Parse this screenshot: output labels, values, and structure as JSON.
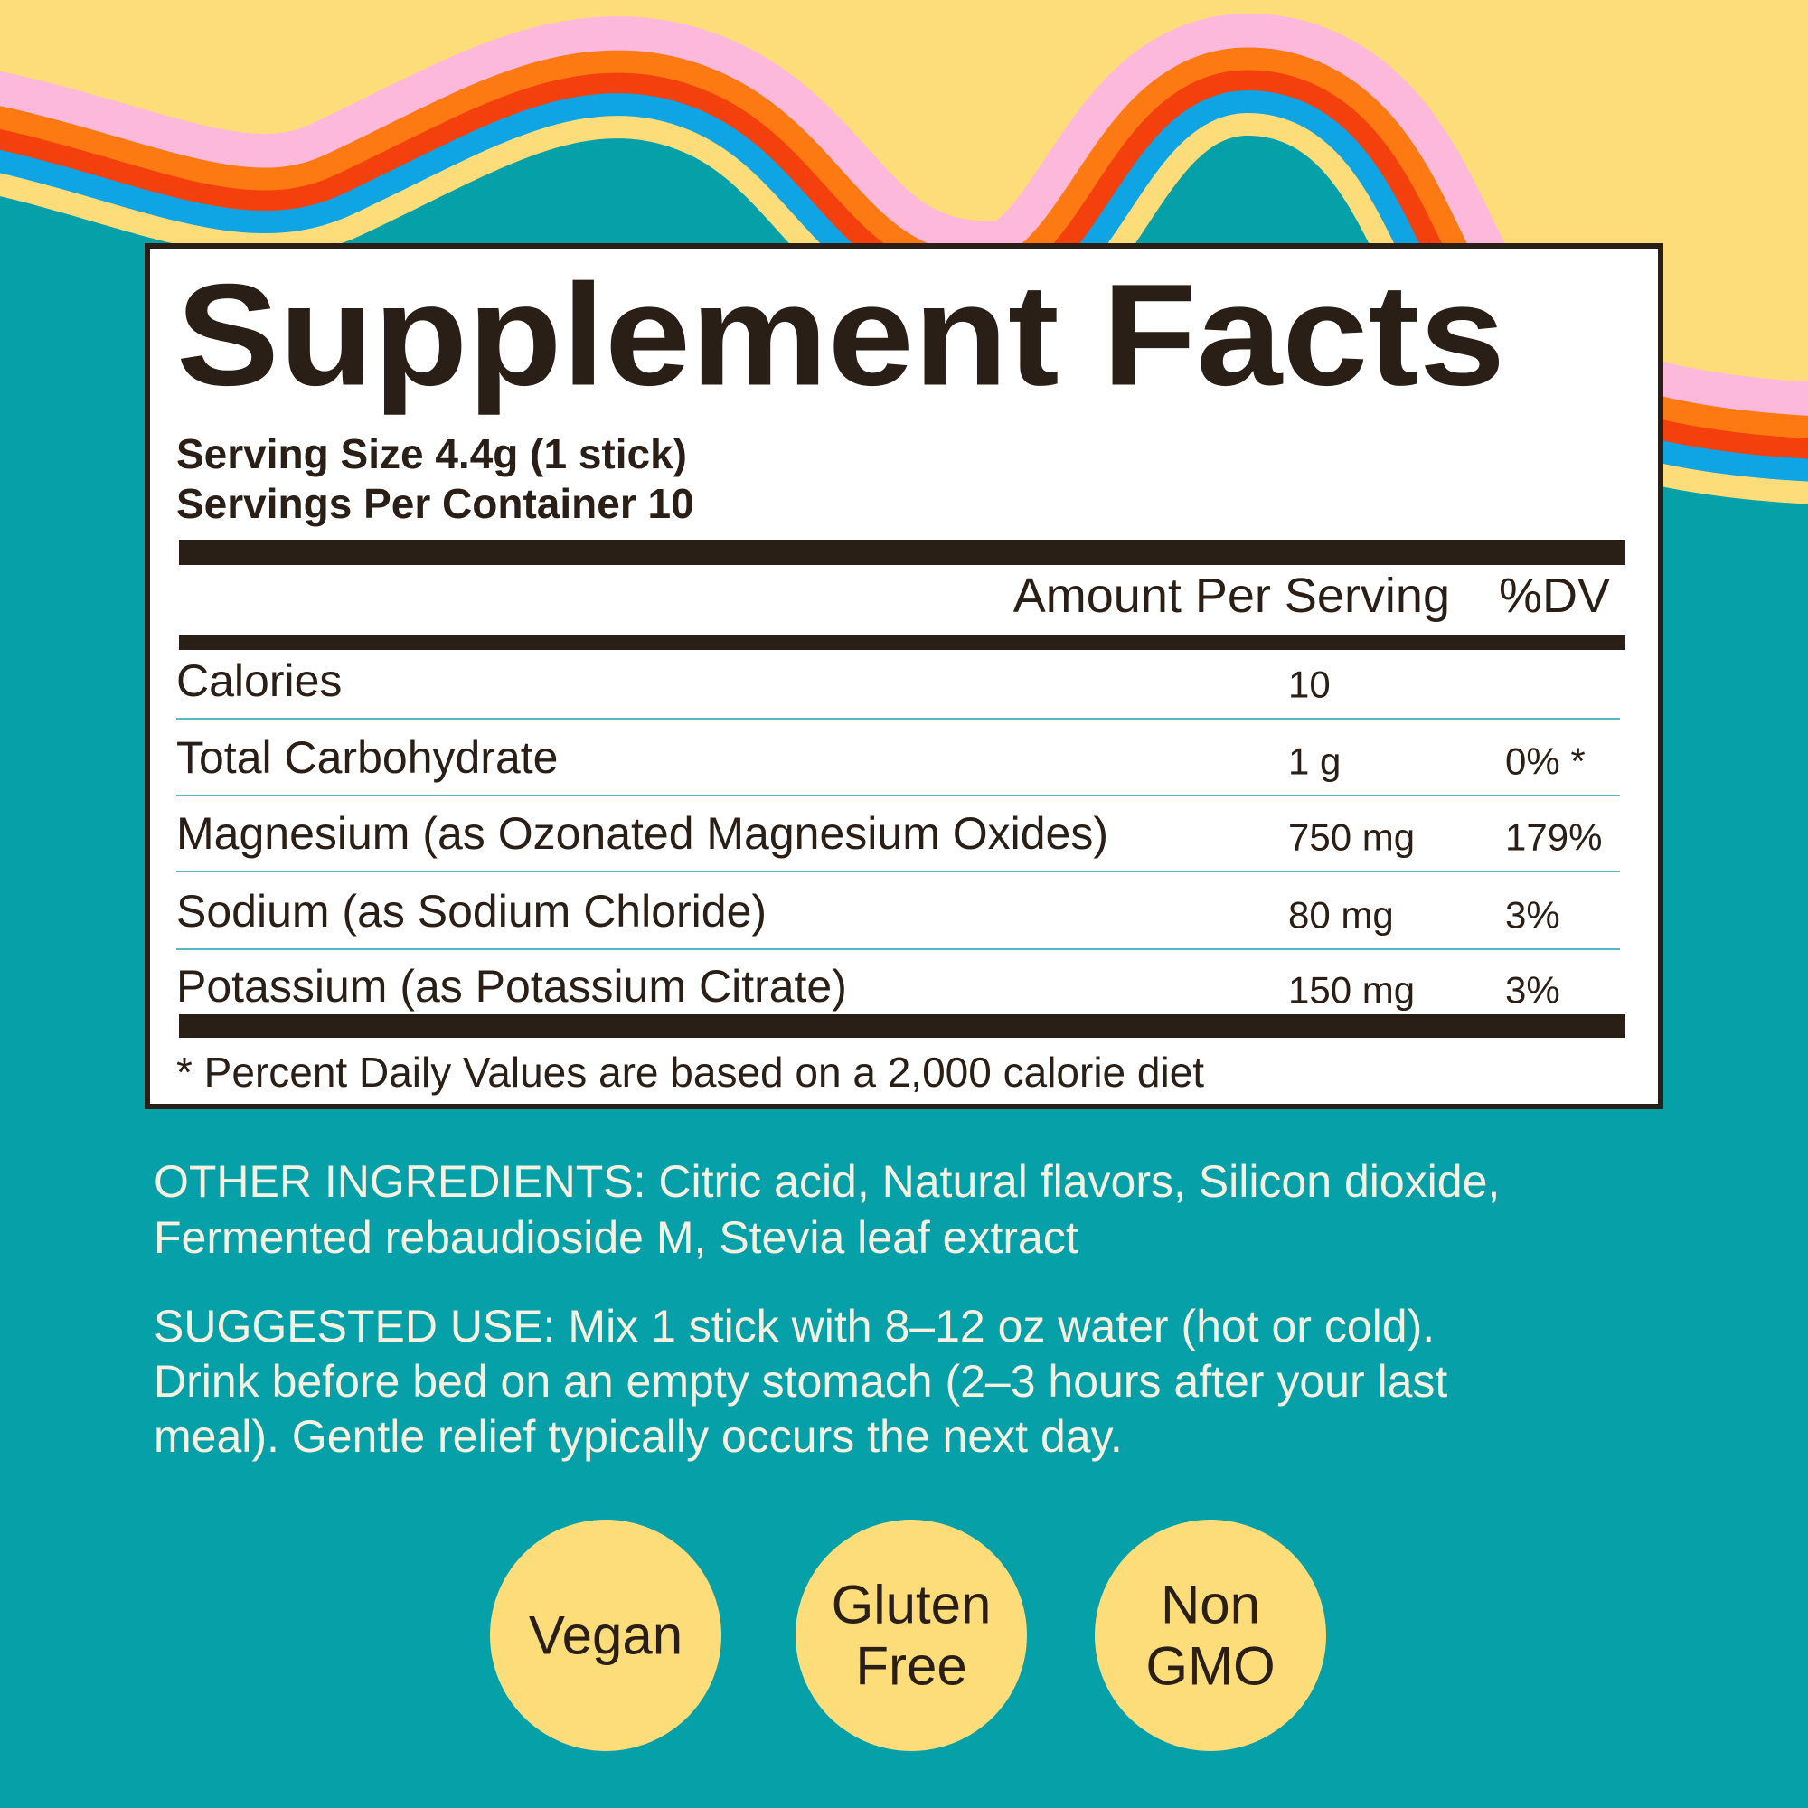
{
  "panel": {
    "title": "Supplement Facts",
    "serving_size": "Serving Size 4.4g (1 stick)",
    "servings_per_container": "Servings Per Container 10",
    "column_headers": [
      "Amount Per Serving",
      "%DV"
    ],
    "rows": [
      {
        "name": "Calories",
        "amount": "10"
      },
      {
        "name": "Total Carbohydrate",
        "amount": "1 g",
        "dv": "0% *"
      },
      {
        "name": "Magnesium (as Ozonated Magnesium Oxides)",
        "amount": "750 mg",
        "dv": "179%"
      },
      {
        "name": "Sodium (as Sodium Chloride)",
        "amount": "80 mg",
        "dv": "3%"
      },
      {
        "name": "Potassium (as Potassium Citrate)",
        "amount": "150 mg",
        "dv": "3%"
      }
    ],
    "footnote": "* Percent Daily Values are based on a 2,000 calorie diet"
  },
  "other_ingredients": [
    "OTHER INGREDIENTS: Citric acid, Natural flavors, Silicon dioxide,",
    "Fermented rebaudioside M, Stevia leaf extract"
  ],
  "suggested_use": [
    "SUGGESTED USE: Mix 1 stick with 8–12 oz water (hot or cold).",
    "Drink before bed on an empty stomach (2–3 hours after your last",
    "meal). Gentle relief typically occurs the next day."
  ],
  "badges": [
    [
      "Vegan"
    ],
    [
      "Gluten",
      "Free"
    ],
    [
      "Non",
      "GMO"
    ]
  ]
}
